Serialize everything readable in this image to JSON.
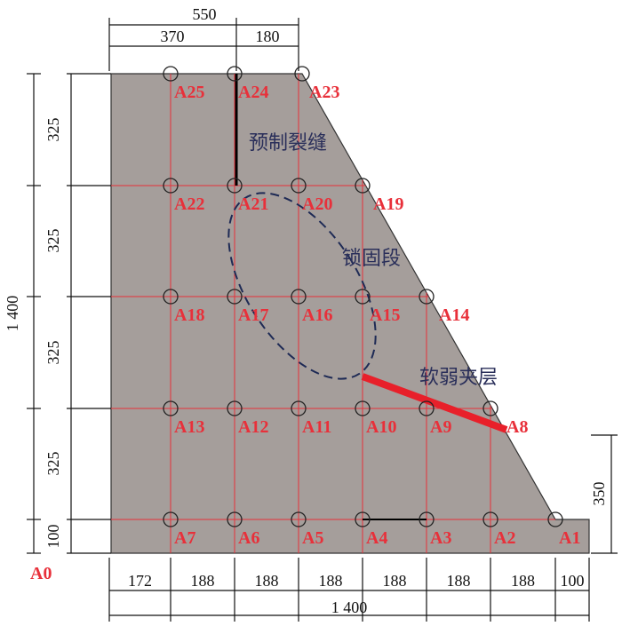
{
  "nodes": [
    "A0",
    "A1",
    "A2",
    "A3",
    "A4",
    "A5",
    "A6",
    "A7",
    "A8",
    "A9",
    "A10",
    "A11",
    "A12",
    "A13",
    "A14",
    "A15",
    "A16",
    "A17",
    "A18",
    "A19",
    "A20",
    "A21",
    "A22",
    "A23",
    "A24",
    "A25"
  ],
  "annotations": {
    "crack": "预制裂缝",
    "anchor": "锁固段",
    "weak_layer": "软弱夹层"
  },
  "dimensions": {
    "top": {
      "total": "550",
      "segments": [
        "370",
        "180"
      ]
    },
    "left": {
      "total": "1 400",
      "segments": [
        "325",
        "325",
        "325",
        "325",
        "100"
      ]
    },
    "bottom": {
      "segments": [
        "172",
        "188",
        "188",
        "188",
        "188",
        "188",
        "188",
        "100"
      ],
      "total": "1 400"
    },
    "right": "350"
  }
}
